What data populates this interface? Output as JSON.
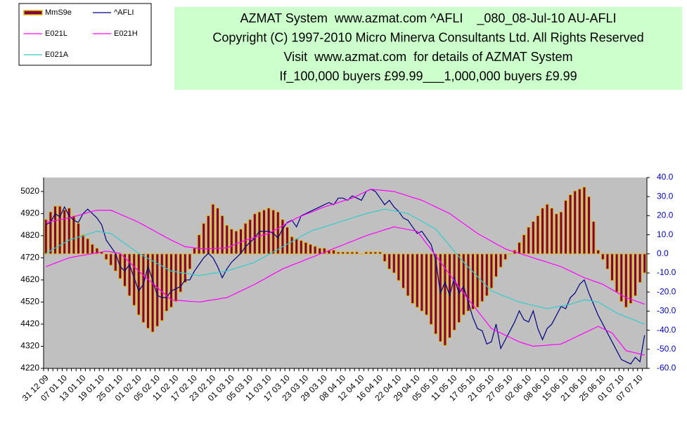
{
  "chart_data": {
    "type": "combo",
    "title_lines": [
      "AZMAT System  www.azmat.com ^AFLI    _080_08-Jul-10 AU-AFLI",
      "Copyright (C) 1997-2010 Micro Minerva Consultants Ltd. All Rights Reserved",
      "Visit  www.azmat.com  for details of AZMAT System",
      "If_100,000 buyers £99.99___1,000,000 buyers £9.99"
    ],
    "legend": "upper left",
    "categories": [
      "31 12 09",
      null,
      null,
      null,
      "07 01 10",
      null,
      null,
      null,
      "13 01 10",
      null,
      null,
      null,
      "19 01 10",
      null,
      null,
      null,
      "25 01 10",
      null,
      null,
      null,
      "01 02 10",
      null,
      null,
      null,
      "05 02 10",
      null,
      null,
      null,
      "11 02 10",
      null,
      null,
      null,
      "17 02 10",
      null,
      null,
      null,
      "23 02 10",
      null,
      null,
      null,
      "01 03 10",
      null,
      null,
      null,
      "05 03 10",
      null,
      null,
      null,
      "11 03 10",
      null,
      null,
      null,
      "17 03 10",
      null,
      null,
      null,
      "23 03 10",
      null,
      null,
      null,
      "29 03 10",
      null,
      null,
      null,
      "08 04 10",
      null,
      null,
      null,
      "12 04 10",
      null,
      null,
      null,
      "16 04 10",
      null,
      null,
      null,
      "22 04 10",
      null,
      null,
      null,
      "29 04 10",
      null,
      null,
      null,
      "05 05 10",
      null,
      null,
      null,
      "11 05 10",
      null,
      null,
      null,
      "17 05 10",
      null,
      null,
      null,
      "21 05 10",
      null,
      null,
      null,
      "27 05 10",
      null,
      null,
      null,
      "02 06 10",
      null,
      null,
      null,
      "08 06 10",
      null,
      null,
      null,
      "15 06 10",
      null,
      null,
      null,
      "21 06 10",
      null,
      null,
      null,
      "25 06 10",
      null,
      null,
      null,
      "01 07 10",
      null,
      null,
      null,
      "07 07 10",
      null
    ],
    "ylim": [
      4220,
      5083
    ],
    "yticks": [
      4220,
      4320,
      4420,
      4520,
      4620,
      4720,
      4820,
      4920,
      5020
    ],
    "y2lim": [
      -60,
      40
    ],
    "y2ticks": [
      {
        "value": 40,
        "label": "40.0"
      },
      {
        "value": 30,
        "label": "30.0"
      },
      {
        "value": 20,
        "label": "20.0"
      },
      {
        "value": 10,
        "label": "10.0"
      },
      {
        "value": 0,
        "label": "0.0"
      },
      {
        "value": -10,
        "label": "-10.0"
      },
      {
        "value": -20,
        "label": "-20.0"
      },
      {
        "value": -30,
        "label": "-30.0"
      },
      {
        "value": -40,
        "label": "-40.0"
      },
      {
        "value": -50,
        "label": "-50.0"
      },
      {
        "value": -60,
        "label": "-60.0"
      }
    ],
    "series": [
      {
        "name": "MmS9e",
        "type": "bar",
        "axis": "y2",
        "color": "#800040",
        "edgecolor": "#e0b800",
        "values": [
          18,
          22,
          25,
          25,
          23,
          24,
          20,
          16,
          10,
          8,
          5,
          3,
          1,
          -3,
          -6,
          -9,
          -13,
          -17,
          -22,
          -27,
          -32,
          -36,
          -39,
          -41,
          -38,
          -35,
          -30,
          -28,
          -25,
          -20,
          -15,
          -8,
          3,
          10,
          16,
          20,
          26,
          24,
          20,
          15,
          13,
          12,
          13,
          16,
          18,
          21,
          22,
          23,
          24,
          23,
          22,
          18,
          14,
          9,
          8,
          7,
          6,
          5,
          4,
          3,
          3,
          2,
          2,
          1,
          1,
          1,
          1,
          1,
          0,
          1,
          1,
          1,
          1,
          -4,
          -8,
          -10,
          -14,
          -18,
          -22,
          -26,
          -28,
          -30,
          -32,
          -37,
          -42,
          -46,
          -48,
          -44,
          -40,
          -36,
          -32,
          -30,
          -29,
          -28,
          -25,
          -22,
          -18,
          -12,
          -7,
          -3,
          0,
          2,
          6,
          10,
          14,
          17,
          20,
          24,
          26,
          24,
          21,
          22,
          28,
          31,
          33,
          34,
          35,
          30,
          17,
          2,
          -3,
          -8,
          -14,
          -20,
          -25,
          -28,
          -26,
          -22,
          -15,
          -10
        ]
      },
      {
        "name": "^AFLI",
        "type": "line",
        "color": "#000080",
        "values": [
          4870,
          4880,
          4920,
          4905,
          4950,
          4910,
          4890,
          4880,
          4920,
          4940,
          4920,
          4900,
          4870,
          4800,
          4770,
          4740,
          4680,
          4660,
          4690,
          4630,
          4570,
          4600,
          4680,
          4620,
          4550,
          4540,
          4540,
          4570,
          4580,
          4590,
          4620,
          4620,
          4660,
          4690,
          4720,
          4740,
          4720,
          4680,
          4630,
          4670,
          4700,
          4720,
          4740,
          4770,
          4790,
          4810,
          4840,
          4840,
          4840,
          4830,
          4810,
          4850,
          4880,
          4890,
          4860,
          4910,
          4920,
          4930,
          4940,
          4950,
          4960,
          4970,
          4960,
          4990,
          4990,
          4980,
          5000,
          4990,
          4980,
          5020,
          5030,
          5020,
          4990,
          4960,
          4980,
          4950,
          4930,
          4900,
          4890,
          4860,
          4830,
          4840,
          4810,
          4780,
          4710,
          4560,
          4610,
          4550,
          4630,
          4560,
          4590,
          4520,
          4450,
          4400,
          4390,
          4330,
          4340,
          4420,
          4310,
          4350,
          4390,
          4430,
          4480,
          4440,
          4430,
          4480,
          4400,
          4350,
          4400,
          4420,
          4460,
          4500,
          4490,
          4540,
          4560,
          4600,
          4620,
          4560,
          4510,
          4460,
          4420,
          4380,
          4340,
          4300,
          4260,
          4250,
          4240,
          4270,
          4250,
          4370
        ]
      },
      {
        "name": "E021L",
        "type": "line",
        "color": "#ff00ff",
        "values": [
          4680,
          4688,
          4696,
          4704,
          4712,
          4720,
          4724,
          4728,
          4731,
          4735,
          4739,
          4743,
          4746,
          4750,
          4747,
          4743,
          4740,
          4720,
          4700,
          4680,
          4660,
          4641,
          4623,
          4604,
          4586,
          4567,
          4549,
          4530,
          4528,
          4527,
          4525,
          4523,
          4522,
          4520,
          4523,
          4527,
          4530,
          4533,
          4537,
          4540,
          4550,
          4560,
          4570,
          4580,
          4590,
          4600,
          4612,
          4623,
          4635,
          4647,
          4658,
          4670,
          4678,
          4687,
          4695,
          4703,
          4712,
          4720,
          4728,
          4737,
          4745,
          4753,
          4762,
          4770,
          4778,
          4787,
          4795,
          4803,
          4812,
          4820,
          4827,
          4833,
          4840,
          4847,
          4853,
          4860,
          4856,
          4852,
          4848,
          4844,
          4840,
          4813,
          4785,
          4758,
          4730,
          4702,
          4673,
          4645,
          4617,
          4588,
          4560,
          4533,
          4507,
          4480,
          4453,
          4427,
          4400,
          4390,
          4380,
          4370,
          4360,
          4350,
          4340,
          4333,
          4327,
          4320,
          4322,
          4323,
          4325,
          4327,
          4328,
          4330,
          4340,
          4350,
          4360,
          4370,
          4380,
          4390,
          4400,
          4410,
          4400,
          4390,
          4380,
          4353,
          4327,
          4300,
          4295,
          4290,
          4285,
          4280
        ]
      },
      {
        "name": "E021H",
        "type": "line",
        "color": "#ff00ff",
        "values": [
          4880,
          4884,
          4888,
          4892,
          4896,
          4900,
          4906,
          4912,
          4918,
          4924,
          4930,
          4935,
          4935,
          4935,
          4935,
          4926,
          4917,
          4908,
          4899,
          4890,
          4880,
          4869,
          4857,
          4846,
          4834,
          4823,
          4811,
          4800,
          4790,
          4780,
          4770,
          4768,
          4765,
          4763,
          4760,
          4761,
          4762,
          4763,
          4764,
          4765,
          4774,
          4783,
          4791,
          4800,
          4806,
          4812,
          4818,
          4824,
          4830,
          4842,
          4853,
          4865,
          4877,
          4888,
          4900,
          4908,
          4917,
          4925,
          4933,
          4942,
          4950,
          4957,
          4963,
          4970,
          4977,
          4983,
          4990,
          5000,
          5010,
          5020,
          5030,
          5028,
          5026,
          5024,
          5022,
          5020,
          5013,
          5007,
          5000,
          4993,
          4987,
          4980,
          4970,
          4960,
          4950,
          4940,
          4930,
          4920,
          4905,
          4890,
          4875,
          4860,
          4845,
          4830,
          4818,
          4807,
          4795,
          4783,
          4772,
          4760,
          4753,
          4747,
          4740,
          4733,
          4727,
          4720,
          4713,
          4707,
          4700,
          4693,
          4687,
          4680,
          4670,
          4660,
          4650,
          4640,
          4630,
          4623,
          4615,
          4608,
          4600,
          4588,
          4576,
          4564,
          4552,
          4540,
          4533,
          4525,
          4518,
          4510
        ]
      },
      {
        "name": "E021A",
        "type": "line",
        "color": "#33cccc",
        "values": [
          4740,
          4752,
          4764,
          4776,
          4788,
          4800,
          4807,
          4813,
          4820,
          4827,
          4833,
          4840,
          4837,
          4833,
          4830,
          4815,
          4800,
          4785,
          4770,
          4755,
          4740,
          4729,
          4717,
          4706,
          4694,
          4683,
          4671,
          4660,
          4657,
          4653,
          4650,
          4647,
          4643,
          4640,
          4643,
          4647,
          4650,
          4653,
          4657,
          4660,
          4667,
          4673,
          4680,
          4687,
          4693,
          4700,
          4712,
          4723,
          4735,
          4747,
          4758,
          4770,
          4782,
          4793,
          4805,
          4817,
          4828,
          4840,
          4847,
          4853,
          4860,
          4867,
          4873,
          4880,
          4887,
          4893,
          4900,
          4907,
          4913,
          4920,
          4925,
          4930,
          4935,
          4940,
          4936,
          4932,
          4928,
          4924,
          4920,
          4908,
          4897,
          4885,
          4873,
          4862,
          4850,
          4825,
          4800,
          4775,
          4750,
          4725,
          4700,
          4678,
          4657,
          4635,
          4613,
          4592,
          4570,
          4562,
          4553,
          4545,
          4537,
          4528,
          4520,
          4515,
          4510,
          4505,
          4500,
          4495,
          4490,
          4494,
          4498,
          4502,
          4506,
          4510,
          4517,
          4523,
          4530,
          4527,
          4523,
          4520,
          4508,
          4495,
          4483,
          4470,
          4462,
          4453,
          4445,
          4437,
          4428,
          4420
        ]
      }
    ]
  }
}
